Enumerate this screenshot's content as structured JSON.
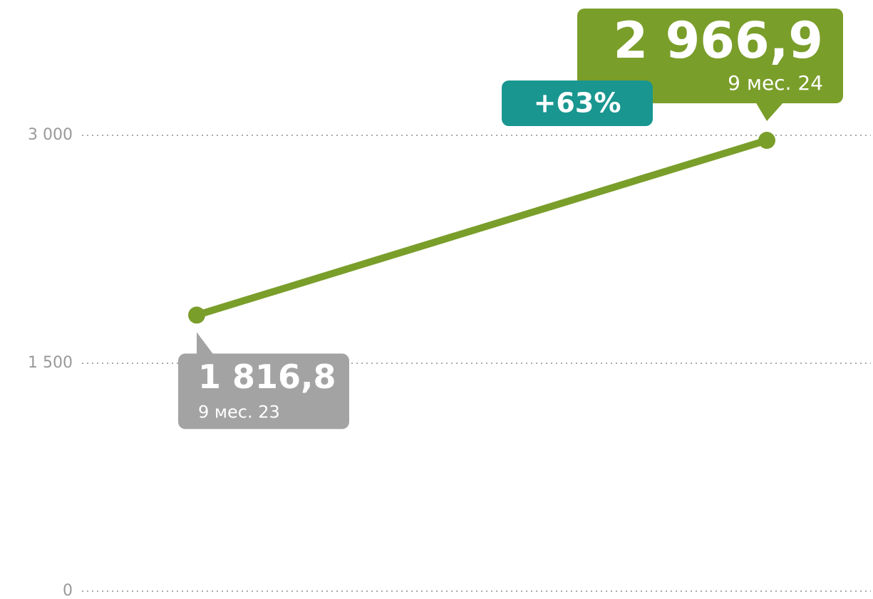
{
  "chart_data": {
    "type": "line",
    "categories": [
      "9 мес. 23",
      "9 мес. 24"
    ],
    "values": [
      1816.8,
      2966.9
    ],
    "value_labels": [
      "1 816,8",
      "2 966,9"
    ],
    "color": "#7a9e2a",
    "label_colors": [
      "#a3a3a3",
      "#7a9e2a"
    ],
    "annotation": "+63%",
    "annotation_color": "#1a9690",
    "ylim": [
      0,
      3000
    ],
    "yticks": [
      {
        "value": 0,
        "label": "0"
      },
      {
        "value": 1500,
        "label": "1 500"
      },
      {
        "value": 3000,
        "label": "3 000"
      }
    ],
    "grid": true
  }
}
